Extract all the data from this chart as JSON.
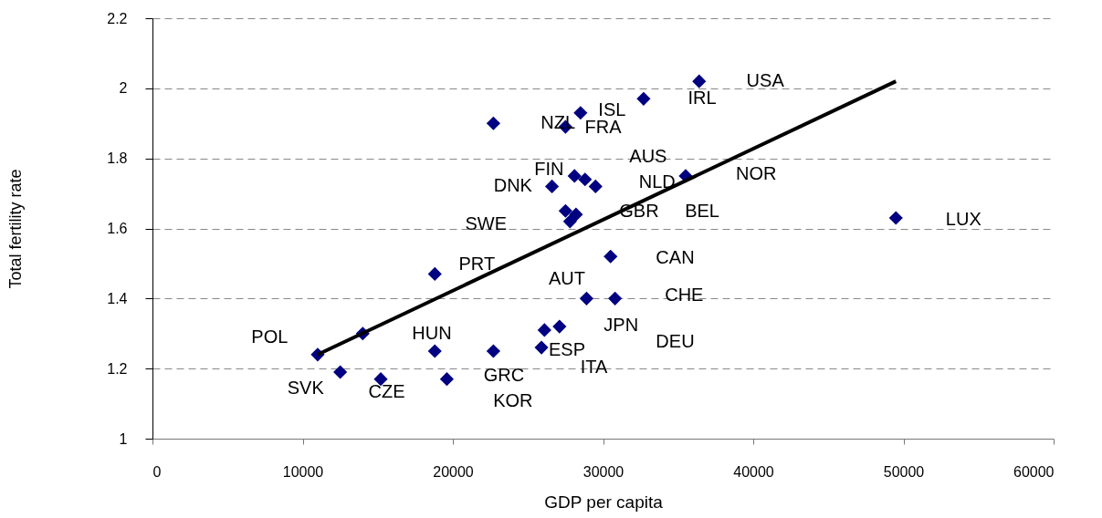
{
  "chart_data": {
    "type": "scatter",
    "xlabel": "GDP per capita",
    "ylabel": "Total fertility rate",
    "xlim": [
      0,
      60000
    ],
    "xticks": [
      0,
      10000,
      20000,
      30000,
      40000,
      50000,
      60000
    ],
    "ylim": [
      1,
      2.2
    ],
    "yticks": [
      1,
      1.2,
      1.4,
      1.6,
      1.8,
      2,
      2.2
    ],
    "grid": "y",
    "series": [
      {
        "marker": "diamond",
        "color": "#000080",
        "x": [
          36400,
          32700,
          28500,
          22700,
          27500,
          28100,
          28800,
          29500,
          26600,
          35500,
          27500,
          28200,
          27800,
          49500,
          30500,
          18800,
          28900,
          30800,
          26100,
          27100,
          25900,
          22700,
          18800,
          14000,
          11000,
          12500,
          15200,
          19600
        ],
        "values": [
          2.02,
          1.97,
          1.93,
          1.9,
          1.89,
          1.75,
          1.74,
          1.72,
          1.72,
          1.75,
          1.65,
          1.64,
          1.62,
          1.63,
          1.52,
          1.47,
          1.4,
          1.4,
          1.31,
          1.32,
          1.26,
          1.25,
          1.25,
          1.3,
          1.24,
          1.19,
          1.17,
          1.17
        ]
      },
      {
        "type": "line",
        "marker": "none",
        "color": "#000000",
        "line_style": "solid",
        "x": [
          11000,
          49500
        ],
        "values": [
          1.24,
          2.02
        ]
      }
    ],
    "annotations": [
      "USA",
      "IRL",
      "ISL",
      "NZL",
      "FRA",
      "AUS",
      "FIN",
      "NLD",
      "DNK",
      "NOR",
      "GBR",
      "BEL",
      "SWE",
      "LUX",
      "CAN",
      "PRT",
      "AUT",
      "CHE",
      "JPN",
      "DEU",
      "ESP",
      "ITA",
      "POL",
      "HUN",
      "GRC",
      "SVK",
      "CZE",
      "KOR"
    ]
  }
}
